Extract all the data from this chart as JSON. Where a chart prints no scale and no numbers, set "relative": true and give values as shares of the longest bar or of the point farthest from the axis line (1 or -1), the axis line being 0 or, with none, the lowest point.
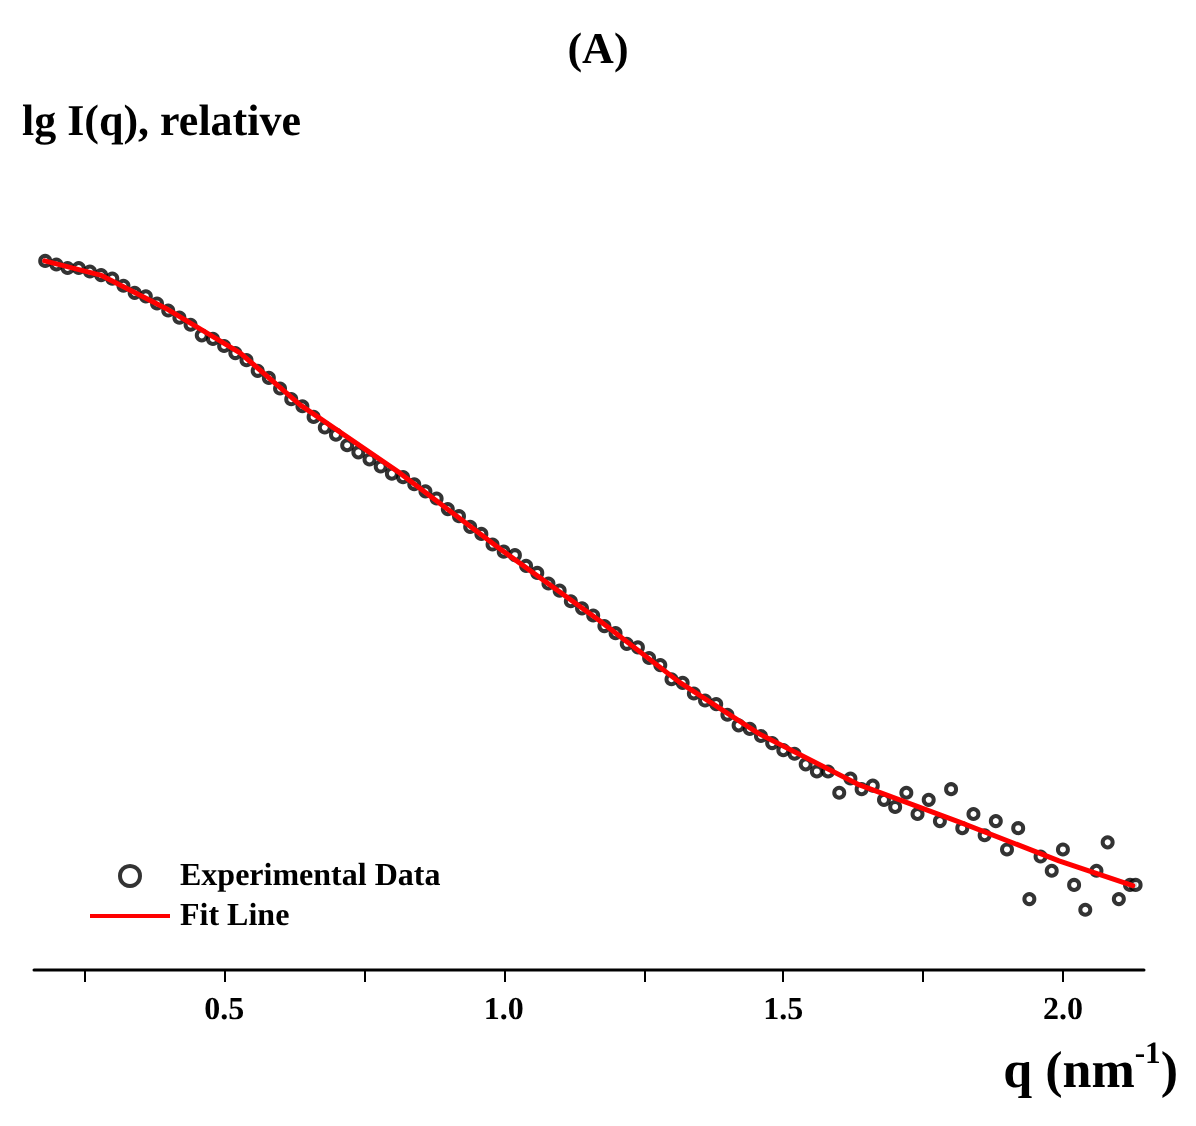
{
  "chart_data": {
    "type": "scatter",
    "title": "(A)",
    "ylabel": "lg I(q), relative",
    "xlabel": "q (nm$^{-1}$)",
    "relative": true,
    "legend": "bottom left",
    "grid": false,
    "xlim": [
      0.16,
      2.145
    ],
    "xticks": [
      {
        "value": 0.25,
        "label": null
      },
      {
        "value": 0.5,
        "label": "0.5"
      },
      {
        "value": 0.75,
        "label": null
      },
      {
        "value": 1,
        "label": "1.0"
      },
      {
        "value": 1.25,
        "label": null
      },
      {
        "value": 1.5,
        "label": "1.5"
      },
      {
        "value": 1.75,
        "label": null
      },
      {
        "value": 2,
        "label": "2.0"
      }
    ],
    "series": [
      {
        "name": "Experimental Data",
        "marker": "circle",
        "color": "#000000",
        "x": [
          0.18,
          0.2,
          0.22,
          0.24,
          0.26,
          0.28,
          0.3,
          0.32,
          0.34,
          0.36,
          0.38,
          0.4,
          0.42,
          0.44,
          0.46,
          0.48,
          0.5,
          0.52,
          0.54,
          0.56,
          0.58,
          0.6,
          0.62,
          0.64,
          0.66,
          0.68,
          0.7,
          0.72,
          0.74,
          0.76,
          0.78,
          0.8,
          0.82,
          0.84,
          0.86,
          0.88,
          0.9,
          0.92,
          0.94,
          0.96,
          0.98,
          1.0,
          1.02,
          1.04,
          1.06,
          1.08,
          1.1,
          1.12,
          1.14,
          1.16,
          1.18,
          1.2,
          1.22,
          1.24,
          1.26,
          1.28,
          1.3,
          1.32,
          1.34,
          1.36,
          1.38,
          1.4,
          1.42,
          1.44,
          1.46,
          1.48,
          1.5,
          1.52,
          1.54,
          1.56,
          1.58,
          1.6,
          1.62,
          1.64,
          1.66,
          1.68,
          1.7,
          1.72,
          1.74,
          1.76,
          1.78,
          1.8,
          1.82,
          1.84,
          1.86,
          1.88,
          1.9,
          1.92,
          1.94,
          1.96,
          1.98,
          2.0,
          2.02,
          2.04,
          2.06,
          2.08,
          2.1,
          2.12,
          2.13
        ],
        "values": [
          1.0,
          0.995,
          0.99,
          0.99,
          0.985,
          0.98,
          0.975,
          0.965,
          0.955,
          0.95,
          0.94,
          0.93,
          0.92,
          0.91,
          0.895,
          0.89,
          0.88,
          0.87,
          0.86,
          0.845,
          0.835,
          0.82,
          0.805,
          0.795,
          0.78,
          0.765,
          0.755,
          0.74,
          0.73,
          0.72,
          0.71,
          0.7,
          0.695,
          0.685,
          0.675,
          0.665,
          0.65,
          0.64,
          0.625,
          0.615,
          0.6,
          0.59,
          0.585,
          0.57,
          0.56,
          0.545,
          0.535,
          0.52,
          0.51,
          0.5,
          0.485,
          0.475,
          0.46,
          0.455,
          0.44,
          0.43,
          0.41,
          0.405,
          0.39,
          0.38,
          0.375,
          0.36,
          0.345,
          0.34,
          0.33,
          0.32,
          0.31,
          0.305,
          0.29,
          0.28,
          0.28,
          0.25,
          0.27,
          0.255,
          0.26,
          0.24,
          0.23,
          0.25,
          0.22,
          0.24,
          0.21,
          0.255,
          0.2,
          0.22,
          0.19,
          0.21,
          0.17,
          0.2,
          0.1,
          0.16,
          0.14,
          0.17,
          0.12,
          0.085,
          0.14,
          0.18,
          0.1,
          0.12,
          0.12
        ]
      },
      {
        "name": "Fit Line",
        "type": "line",
        "marker": "none",
        "line_style": "solid",
        "color": "#ff0000",
        "x": [
          0.179,
          0.279,
          0.396,
          0.529,
          0.636,
          0.814,
          0.993,
          1.171,
          1.314,
          1.457,
          1.636,
          1.814,
          1.993,
          2.125
        ],
        "values": [
          1.0,
          0.98,
          0.933,
          0.87,
          0.797,
          0.701,
          0.594,
          0.493,
          0.406,
          0.333,
          0.261,
          0.209,
          0.154,
          0.119
        ]
      }
    ]
  }
}
